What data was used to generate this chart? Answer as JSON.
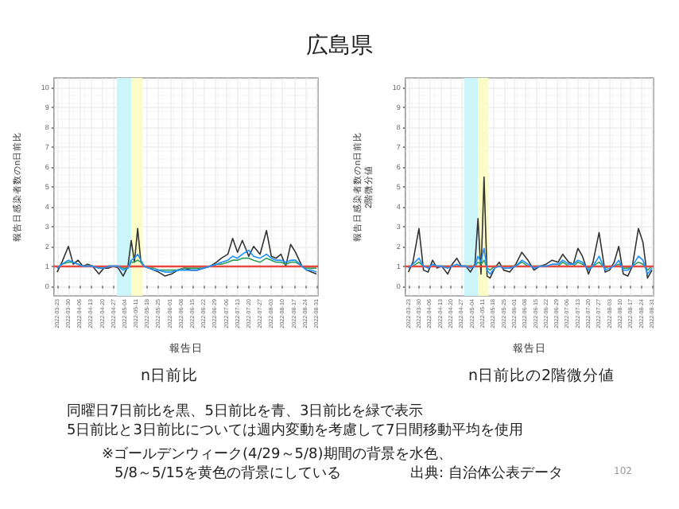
{
  "chart_data": [
    {
      "type": "line",
      "title": "広島県",
      "subtitle": "n日前比",
      "xlabel": "報告日",
      "ylabel": "報告日感染者数のn日前比",
      "grid": true,
      "marker": "none",
      "line_style": "solid",
      "x": [
        "2022-03-23",
        "2022-03-26",
        "2022-03-30",
        "2022-04-02",
        "2022-04-05",
        "2022-04-08",
        "2022-04-11",
        "2022-04-14",
        "2022-04-18",
        "2022-04-21",
        "2022-04-24",
        "2022-04-27",
        "2022-04-30",
        "2022-05-03",
        "2022-05-06",
        "2022-05-08",
        "2022-05-10",
        "2022-05-12",
        "2022-05-14",
        "2022-05-16",
        "2022-05-19",
        "2022-05-22",
        "2022-05-25",
        "2022-05-29",
        "2022-06-02",
        "2022-06-06",
        "2022-06-10",
        "2022-06-14",
        "2022-06-18",
        "2022-06-22",
        "2022-06-26",
        "2022-06-30",
        "2022-07-03",
        "2022-07-07",
        "2022-07-10",
        "2022-07-13",
        "2022-07-16",
        "2022-07-20",
        "2022-07-23",
        "2022-07-27",
        "2022-07-31",
        "2022-08-03",
        "2022-08-06",
        "2022-08-09",
        "2022-08-12",
        "2022-08-15",
        "2022-08-18",
        "2022-08-22",
        "2022-08-25",
        "2022-08-28",
        "2022-08-31"
      ],
      "series": [
        {
          "color": "#333333",
          "values": [
            0.7,
            1.2,
            2.0,
            1.1,
            1.3,
            1.0,
            1.1,
            1.0,
            0.6,
            0.9,
            0.9,
            1.0,
            0.9,
            0.5,
            1.0,
            2.3,
            1.2,
            2.9,
            1.2,
            1.0,
            0.9,
            0.8,
            0.7,
            0.5,
            0.6,
            0.8,
            0.9,
            0.8,
            0.8,
            0.9,
            1.0,
            1.2,
            1.4,
            1.6,
            2.4,
            1.7,
            2.3,
            1.5,
            2.0,
            1.6,
            2.8,
            1.5,
            1.4,
            1.6,
            1.0,
            2.1,
            1.7,
            1.0,
            0.8,
            0.7,
            0.6
          ]
        },
        {
          "color": "#2e9e5b",
          "values": [
            0.9,
            1.1,
            1.2,
            1.2,
            1.1,
            1.0,
            1.0,
            1.0,
            0.9,
            0.9,
            1.0,
            1.0,
            1.0,
            0.9,
            0.9,
            1.2,
            1.2,
            1.3,
            1.2,
            1.0,
            0.9,
            0.9,
            0.8,
            0.8,
            0.8,
            0.8,
            0.9,
            0.9,
            0.9,
            0.9,
            1.0,
            1.1,
            1.1,
            1.2,
            1.3,
            1.3,
            1.4,
            1.4,
            1.3,
            1.2,
            1.4,
            1.3,
            1.2,
            1.2,
            1.1,
            1.2,
            1.2,
            1.0,
            0.9,
            0.9,
            0.9
          ]
        },
        {
          "color": "#1e90ff",
          "values": [
            0.9,
            1.1,
            1.3,
            1.2,
            1.1,
            1.0,
            1.0,
            1.0,
            0.9,
            0.9,
            1.0,
            1.0,
            1.0,
            0.8,
            0.9,
            1.3,
            1.4,
            1.6,
            1.3,
            1.0,
            0.9,
            0.8,
            0.8,
            0.7,
            0.7,
            0.8,
            0.8,
            0.8,
            0.8,
            0.9,
            1.0,
            1.1,
            1.2,
            1.3,
            1.5,
            1.4,
            1.6,
            1.8,
            1.5,
            1.4,
            1.6,
            1.4,
            1.3,
            1.3,
            1.2,
            1.3,
            1.3,
            1.0,
            0.8,
            0.8,
            0.7
          ]
        }
      ],
      "xlim": [
        "2022-03-21",
        "2022-09-01"
      ],
      "xticks": [
        "2022-03-23",
        "2022-03-30",
        "2022-04-06",
        "2022-04-13",
        "2022-04-20",
        "2022-04-27",
        "2022-05-04",
        "2022-05-11",
        "2022-05-18",
        "2022-05-25",
        "2022-06-01",
        "2022-06-08",
        "2022-06-15",
        "2022-06-22",
        "2022-06-29",
        "2022-07-06",
        "2022-07-13",
        "2022-07-20",
        "2022-07-27",
        "2022-08-03",
        "2022-08-10",
        "2022-08-17",
        "2022-08-24",
        "2022-08-31"
      ],
      "ylim": [
        -0.5,
        10.5
      ],
      "yticks": [
        0,
        1,
        2,
        3,
        4,
        5,
        6,
        7,
        8,
        9,
        10
      ],
      "ref_lines": [
        {
          "axis": "y",
          "value": 1,
          "color": "#e8493f"
        }
      ],
      "bands": [
        {
          "axis": "x",
          "from": "2022-04-29",
          "to": "2022-05-08",
          "color": "#ccf5fa"
        },
        {
          "axis": "x",
          "from": "2022-05-08",
          "to": "2022-05-15",
          "color": "#fcfcc8"
        }
      ],
      "annotations": [
        "同曜日7日前比を黒、5日前比を青、3日前比を緑で表示",
        "5日前比と3日前比については週内変動を考慮して7日間移動平均を使用",
        "※ゴールデンウィーク(4/29～5/8)期間の背景を水色、",
        "5/8～5/15を黄色の背景にしている",
        "出典: 自治体公表データ",
        "102"
      ]
    },
    {
      "type": "line",
      "subtitle": "n日前比の2階微分値",
      "xlabel": "報告日",
      "ylabel": "報告日感染者数のn日前比\n2階微分値",
      "grid": true,
      "marker": "none",
      "line_style": "solid",
      "x": [
        "2022-03-23",
        "2022-03-26",
        "2022-03-30",
        "2022-04-02",
        "2022-04-05",
        "2022-04-08",
        "2022-04-11",
        "2022-04-14",
        "2022-04-18",
        "2022-04-21",
        "2022-04-24",
        "2022-04-27",
        "2022-04-30",
        "2022-05-03",
        "2022-05-06",
        "2022-05-08",
        "2022-05-10",
        "2022-05-12",
        "2022-05-14",
        "2022-05-16",
        "2022-05-19",
        "2022-05-22",
        "2022-05-25",
        "2022-05-29",
        "2022-06-02",
        "2022-06-06",
        "2022-06-10",
        "2022-06-14",
        "2022-06-18",
        "2022-06-22",
        "2022-06-26",
        "2022-06-30",
        "2022-07-03",
        "2022-07-07",
        "2022-07-10",
        "2022-07-13",
        "2022-07-16",
        "2022-07-20",
        "2022-07-23",
        "2022-07-27",
        "2022-07-31",
        "2022-08-03",
        "2022-08-06",
        "2022-08-09",
        "2022-08-12",
        "2022-08-15",
        "2022-08-18",
        "2022-08-22",
        "2022-08-25",
        "2022-08-28",
        "2022-08-31"
      ],
      "series": [
        {
          "color": "#333333",
          "values": [
            0.7,
            1.2,
            2.9,
            0.8,
            0.7,
            1.3,
            0.9,
            1.0,
            0.6,
            1.1,
            1.4,
            1.0,
            1.0,
            0.7,
            1.1,
            3.4,
            0.6,
            5.5,
            0.5,
            0.4,
            0.9,
            1.2,
            0.8,
            0.7,
            1.1,
            1.7,
            1.3,
            0.8,
            1.0,
            1.1,
            1.3,
            1.2,
            1.6,
            1.2,
            1.1,
            1.9,
            1.5,
            0.6,
            1.2,
            2.7,
            0.7,
            0.8,
            1.2,
            2.0,
            0.6,
            0.5,
            1.0,
            2.9,
            2.2,
            0.4,
            0.8
          ]
        },
        {
          "color": "#2e9e5b",
          "values": [
            1.0,
            1.0,
            1.2,
            1.0,
            1.0,
            1.0,
            1.0,
            1.0,
            1.0,
            1.0,
            1.0,
            1.0,
            1.0,
            1.0,
            1.0,
            1.2,
            1.1,
            1.3,
            0.9,
            0.8,
            1.0,
            1.0,
            1.0,
            1.0,
            1.0,
            1.2,
            1.0,
            1.0,
            1.0,
            1.0,
            1.0,
            1.0,
            1.2,
            1.0,
            1.0,
            1.2,
            1.1,
            0.9,
            1.0,
            1.2,
            0.9,
            1.0,
            1.0,
            1.1,
            0.9,
            0.9,
            1.0,
            1.2,
            1.1,
            0.8,
            1.0
          ]
        },
        {
          "color": "#1e90ff",
          "values": [
            0.9,
            1.1,
            1.4,
            1.0,
            0.9,
            1.1,
            1.0,
            1.0,
            0.9,
            1.0,
            1.1,
            1.0,
            1.0,
            0.9,
            1.0,
            1.5,
            1.2,
            1.9,
            0.8,
            0.6,
            0.9,
            1.0,
            0.9,
            0.9,
            1.0,
            1.3,
            1.1,
            0.9,
            1.0,
            1.0,
            1.1,
            1.1,
            1.3,
            1.1,
            1.1,
            1.3,
            1.2,
            0.8,
            1.0,
            1.5,
            0.8,
            0.9,
            1.0,
            1.3,
            0.8,
            0.8,
            1.0,
            1.5,
            1.3,
            0.6,
            0.9
          ]
        }
      ],
      "xlim": [
        "2022-03-21",
        "2022-09-01"
      ],
      "xticks": [
        "2022-03-23",
        "2022-03-30",
        "2022-04-06",
        "2022-04-13",
        "2022-04-20",
        "2022-04-27",
        "2022-05-04",
        "2022-05-11",
        "2022-05-18",
        "2022-05-25",
        "2022-06-01",
        "2022-06-08",
        "2022-06-15",
        "2022-06-22",
        "2022-06-29",
        "2022-07-06",
        "2022-07-13",
        "2022-07-20",
        "2022-07-27",
        "2022-08-03",
        "2022-08-10",
        "2022-08-17",
        "2022-08-24",
        "2022-08-31"
      ],
      "ylim": [
        -0.5,
        10.5
      ],
      "yticks": [
        0,
        1,
        2,
        3,
        4,
        5,
        6,
        7,
        8,
        9,
        10
      ],
      "ref_lines": [
        {
          "axis": "y",
          "value": 1,
          "color": "#e8493f"
        }
      ],
      "bands": [
        {
          "axis": "x",
          "from": "2022-04-29",
          "to": "2022-05-08",
          "color": "#ccf5fa"
        },
        {
          "axis": "x",
          "from": "2022-05-08",
          "to": "2022-05-15",
          "color": "#fcfcc8"
        }
      ]
    }
  ]
}
